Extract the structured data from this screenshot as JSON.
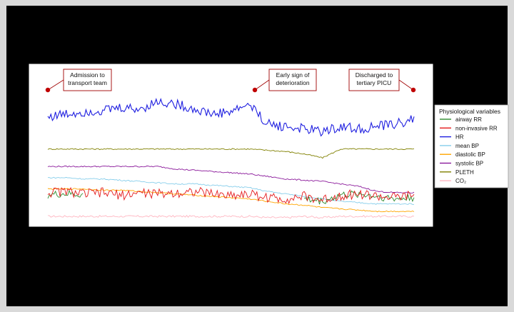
{
  "chart_data": {
    "type": "line",
    "title": "",
    "xlabel": "",
    "ylabel": "",
    "legend": {
      "title": "Physiological variables",
      "placement": "right",
      "entries": [
        {
          "key": "airway_rr",
          "label": "airway RR",
          "color": "#2e8b2e"
        },
        {
          "key": "nibp_rr",
          "label": "non-invasive RR",
          "color": "#e41a1c"
        },
        {
          "key": "hr",
          "label": "HR",
          "color": "#1f1fe0"
        },
        {
          "key": "mean_bp",
          "label": "mean BP",
          "color": "#87ceeb"
        },
        {
          "key": "dia_bp",
          "label": "diastolic BP",
          "color": "#ffa500"
        },
        {
          "key": "sys_bp",
          "label": "systolic BP",
          "color": "#8b1a9b"
        },
        {
          "key": "pleth",
          "label": "PLETH",
          "color": "#808000"
        },
        {
          "key": "co2",
          "label": "CO₂",
          "color": "#ffb6c1"
        }
      ]
    },
    "annotations": [
      {
        "key": "admission",
        "lines": [
          "Admission to",
          "transport team"
        ],
        "t": 0.0
      },
      {
        "key": "deterioration",
        "lines": [
          "Early sign of",
          "deterioration"
        ],
        "t": 0.555
      },
      {
        "key": "discharge",
        "lines": [
          "Discharged to",
          "tertiary PICU"
        ],
        "t": 1.0
      }
    ],
    "x": [
      0,
      0.05,
      0.1,
      0.15,
      0.2,
      0.25,
      0.3,
      0.35,
      0.4,
      0.45,
      0.5,
      0.55,
      0.6,
      0.65,
      0.7,
      0.75,
      0.8,
      0.85,
      0.9,
      0.95,
      1.0
    ],
    "series": [
      {
        "key": "hr",
        "values": [
          158,
          160,
          162,
          163,
          165,
          164,
          170,
          168,
          164,
          160,
          162,
          168,
          152,
          150,
          148,
          146,
          150,
          148,
          150,
          152,
          156
        ]
      },
      {
        "key": "pleth",
        "values": [
          132,
          132,
          132,
          132,
          132,
          132,
          132,
          132,
          132,
          132,
          132,
          132,
          131,
          130,
          128,
          125,
          132,
          132,
          132,
          132,
          132
        ]
      },
      {
        "key": "sys_bp",
        "values": [
          118,
          118,
          118,
          118,
          118,
          118,
          118,
          116,
          115,
          114,
          113,
          112,
          110,
          108,
          107,
          106,
          104,
          102,
          98,
          97,
          97
        ]
      },
      {
        "key": "mean_bp",
        "values": [
          109,
          109,
          108,
          108,
          107,
          106,
          105,
          104,
          104,
          103,
          102,
          101,
          98,
          96,
          94,
          92,
          90,
          89,
          88,
          88,
          88
        ]
      },
      {
        "key": "dia_bp",
        "values": [
          100,
          100,
          100,
          99,
          99,
          98,
          97,
          96,
          95,
          94,
          93,
          92,
          90,
          88,
          87,
          85,
          84,
          83,
          82,
          82,
          82
        ]
      },
      {
        "key": "nibp_rr",
        "values": [
          97,
          98,
          96,
          97,
          95,
          97,
          96,
          97,
          98,
          96,
          95,
          96,
          93,
          92,
          94,
          91,
          95,
          96,
          94,
          93,
          95
        ]
      },
      {
        "key": "airway_rr",
        "values": [
          95,
          96,
          95,
          null,
          null,
          null,
          null,
          null,
          null,
          null,
          null,
          null,
          null,
          null,
          92,
          90,
          95,
          96,
          94,
          92,
          93
        ]
      },
      {
        "key": "co2",
        "values": [
          78,
          78,
          78,
          78,
          78,
          78,
          78,
          78,
          78,
          78,
          78,
          78,
          77,
          77,
          78,
          77,
          78,
          78,
          78,
          78,
          78
        ]
      }
    ],
    "x_tick_labels": [],
    "grid": false
  }
}
